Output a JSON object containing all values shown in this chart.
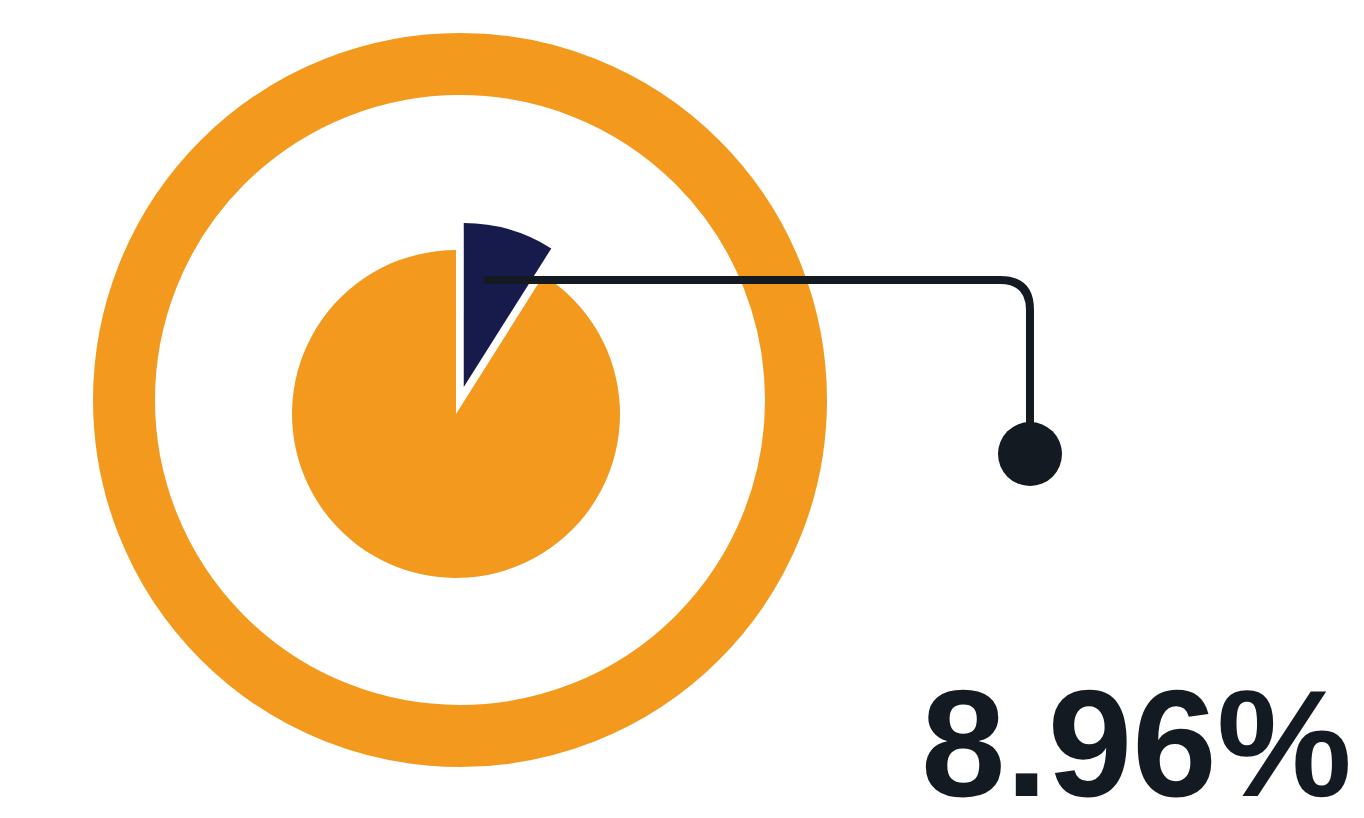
{
  "chart_data": {
    "type": "pie",
    "categories": [
      null,
      null
    ],
    "values": [
      8.96,
      91.04
    ],
    "colors": [
      "#161b4c",
      "#f39a1e"
    ],
    "annotations": [
      "8.96%"
    ]
  }
}
